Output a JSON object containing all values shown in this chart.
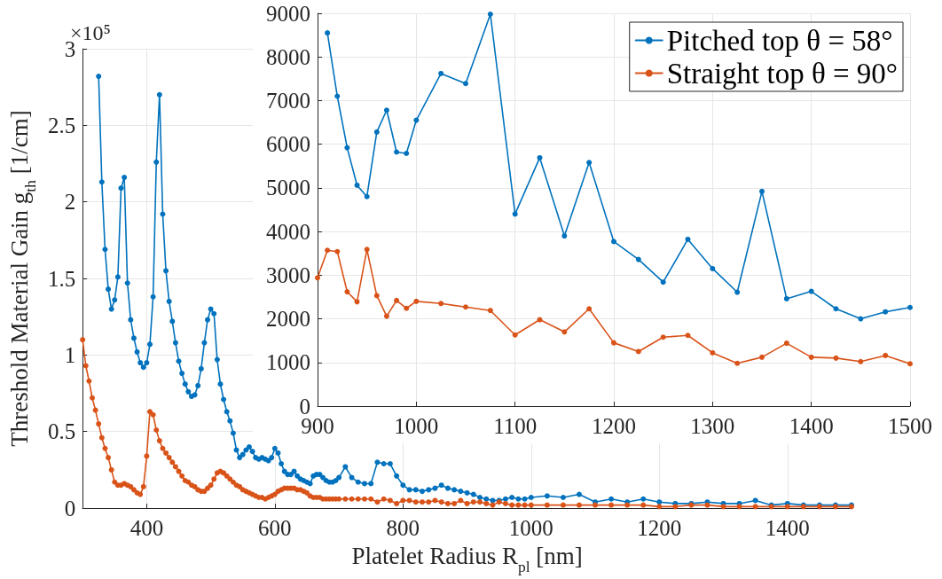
{
  "chart_data": [
    {
      "type": "line",
      "xlabel": "Platelet Radius R$_{pl}$ [nm]",
      "ylabel": "Threshold Material Gain g$_{th}$ [1/cm]",
      "annotations": [
        "×10⁵"
      ],
      "xlim": [
        300,
        1500
      ],
      "xticks": [
        400,
        600,
        800,
        1000,
        1200,
        1400
      ],
      "ylim": [
        0,
        3
      ],
      "yticks": [
        0,
        0.5,
        1,
        1.5,
        2,
        2.5,
        3
      ],
      "grid": true,
      "legend": false,
      "marker": "circle",
      "line_style": "solid",
      "series": [
        {
          "color": "#0072bd",
          "x": [
            325,
            330,
            335,
            340,
            345,
            350,
            355,
            360,
            365,
            370,
            375,
            380,
            385,
            390,
            395,
            400,
            405,
            410,
            415,
            420,
            425,
            430,
            435,
            440,
            445,
            450,
            455,
            460,
            465,
            470,
            475,
            480,
            485,
            490,
            495,
            500,
            505,
            510,
            515,
            520,
            525,
            530,
            535,
            540,
            545,
            550,
            555,
            560,
            565,
            570,
            575,
            580,
            585,
            590,
            595,
            600,
            605,
            610,
            615,
            620,
            625,
            630,
            635,
            640,
            645,
            650,
            655,
            660,
            665,
            670,
            675,
            680,
            685,
            690,
            695,
            700,
            710,
            720,
            730,
            740,
            750,
            760,
            770,
            780,
            790,
            800,
            810,
            820,
            830,
            840,
            850,
            860,
            870,
            880,
            890,
            900,
            910,
            920,
            930,
            940,
            950,
            960,
            970,
            980,
            990,
            1000,
            1025,
            1050,
            1075,
            1100,
            1125,
            1150,
            1175,
            1200,
            1225,
            1250,
            1275,
            1300,
            1325,
            1350,
            1375,
            1400,
            1425,
            1450,
            1475,
            1500
          ],
          "values": [
            2.82,
            2.13,
            1.69,
            1.43,
            1.3,
            1.36,
            1.51,
            2.09,
            2.16,
            1.47,
            1.23,
            1.11,
            1.02,
            0.95,
            0.92,
            0.95,
            1.07,
            1.38,
            2.26,
            2.7,
            1.92,
            1.55,
            1.35,
            1.22,
            1.08,
            0.96,
            0.88,
            0.81,
            0.76,
            0.73,
            0.74,
            0.8,
            0.91,
            1.08,
            1.23,
            1.3,
            1.27,
            0.97,
            0.81,
            0.71,
            0.63,
            0.57,
            0.49,
            0.38,
            0.33,
            0.35,
            0.38,
            0.4,
            0.37,
            0.33,
            0.32,
            0.33,
            0.32,
            0.31,
            0.33,
            0.39,
            0.36,
            0.29,
            0.24,
            0.22,
            0.22,
            0.24,
            0.21,
            0.19,
            0.18,
            0.17,
            0.16,
            0.21,
            0.22,
            0.22,
            0.2,
            0.18,
            0.17,
            0.17,
            0.18,
            0.2,
            0.27,
            0.2,
            0.17,
            0.16,
            0.16,
            0.3,
            0.29,
            0.29,
            0.21,
            0.15,
            0.12,
            0.12,
            0.11,
            0.12,
            0.13,
            0.15,
            0.13,
            0.12,
            0.11,
            0.1,
            0.09,
            0.07,
            0.06,
            0.05,
            0.05,
            0.06,
            0.07,
            0.06,
            0.06,
            0.07,
            0.08,
            0.07,
            0.09,
            0.04,
            0.06,
            0.04,
            0.06,
            0.04,
            0.03,
            0.03,
            0.04,
            0.03,
            0.03,
            0.05,
            0.02,
            0.03,
            0.02,
            0.02,
            0.02,
            0.02
          ]
        },
        {
          "color": "#d95319",
          "x": [
            300,
            305,
            310,
            315,
            320,
            325,
            330,
            335,
            340,
            345,
            350,
            355,
            360,
            365,
            370,
            375,
            380,
            385,
            390,
            395,
            400,
            405,
            410,
            415,
            420,
            425,
            430,
            435,
            440,
            445,
            450,
            455,
            460,
            465,
            470,
            475,
            480,
            485,
            490,
            495,
            500,
            505,
            510,
            515,
            520,
            525,
            530,
            535,
            540,
            545,
            550,
            555,
            560,
            565,
            570,
            575,
            580,
            585,
            590,
            595,
            600,
            605,
            610,
            615,
            620,
            625,
            630,
            635,
            640,
            645,
            650,
            655,
            660,
            665,
            670,
            675,
            680,
            685,
            690,
            695,
            700,
            710,
            720,
            730,
            740,
            750,
            760,
            770,
            780,
            790,
            800,
            810,
            820,
            830,
            840,
            850,
            860,
            870,
            880,
            890,
            900,
            910,
            920,
            930,
            940,
            950,
            960,
            970,
            980,
            990,
            1000,
            1025,
            1050,
            1075,
            1100,
            1125,
            1150,
            1175,
            1200,
            1225,
            1250,
            1275,
            1300,
            1325,
            1350,
            1375,
            1400,
            1425,
            1450,
            1475,
            1500
          ],
          "values": [
            1.1,
            0.93,
            0.83,
            0.72,
            0.64,
            0.55,
            0.46,
            0.39,
            0.33,
            0.25,
            0.17,
            0.15,
            0.15,
            0.16,
            0.15,
            0.14,
            0.12,
            0.1,
            0.09,
            0.14,
            0.34,
            0.63,
            0.61,
            0.51,
            0.44,
            0.39,
            0.36,
            0.33,
            0.3,
            0.27,
            0.24,
            0.21,
            0.18,
            0.17,
            0.15,
            0.14,
            0.12,
            0.11,
            0.11,
            0.13,
            0.15,
            0.19,
            0.23,
            0.24,
            0.23,
            0.21,
            0.19,
            0.17,
            0.15,
            0.14,
            0.12,
            0.11,
            0.1,
            0.09,
            0.08,
            0.07,
            0.07,
            0.06,
            0.07,
            0.08,
            0.09,
            0.11,
            0.12,
            0.13,
            0.13,
            0.13,
            0.13,
            0.12,
            0.12,
            0.11,
            0.1,
            0.08,
            0.07,
            0.07,
            0.07,
            0.06,
            0.06,
            0.06,
            0.06,
            0.06,
            0.06,
            0.06,
            0.06,
            0.06,
            0.06,
            0.06,
            0.04,
            0.06,
            0.05,
            0.03,
            0.05,
            0.05,
            0.04,
            0.04,
            0.04,
            0.05,
            0.04,
            0.03,
            0.03,
            0.05,
            0.03,
            0.04,
            0.04,
            0.03,
            0.02,
            0.04,
            0.03,
            0.02,
            0.02,
            0.02,
            0.02,
            0.02,
            0.02,
            0.02,
            0.02,
            0.02,
            0.02,
            0.02,
            0.01,
            0.01,
            0.02,
            0.02,
            0.01,
            0.01,
            0.01,
            0.01,
            0.01,
            0.01,
            0.01,
            0.01,
            0.01
          ]
        }
      ]
    },
    {
      "type": "line",
      "xlim": [
        900,
        1500
      ],
      "xticks": [
        900,
        1000,
        1100,
        1200,
        1300,
        1400,
        1500
      ],
      "ylim": [
        0,
        9000
      ],
      "yticks": [
        0,
        1000,
        2000,
        3000,
        4000,
        5000,
        6000,
        7000,
        8000,
        9000
      ],
      "grid": true,
      "legend": "top right",
      "marker": "circle",
      "line_style": "solid",
      "series": [
        {
          "name": "Pitched top θ = 58°",
          "color": "#0072bd",
          "x": [
            910,
            920,
            930,
            940,
            950,
            960,
            970,
            980,
            990,
            1000,
            1025,
            1050,
            1075,
            1100,
            1125,
            1150,
            1175,
            1200,
            1225,
            1250,
            1275,
            1300,
            1325,
            1350,
            1375,
            1400,
            1425,
            1450,
            1475,
            1500
          ],
          "values": [
            8550,
            7100,
            5920,
            5060,
            4800,
            6280,
            6780,
            5820,
            5790,
            6550,
            7620,
            7390,
            8980,
            4400,
            5690,
            3900,
            5580,
            3770,
            3360,
            2840,
            3820,
            3150,
            2610,
            4920,
            2460,
            2630,
            2230,
            2000,
            2160,
            2260
          ]
        },
        {
          "name": "Straight top θ = 90°",
          "color": "#d95319",
          "x": [
            900,
            910,
            920,
            930,
            940,
            950,
            960,
            970,
            980,
            990,
            1000,
            1025,
            1050,
            1075,
            1100,
            1125,
            1150,
            1175,
            1200,
            1225,
            1250,
            1275,
            1300,
            1325,
            1350,
            1375,
            1400,
            1425,
            1450,
            1475,
            1500
          ],
          "values": [
            2940,
            3570,
            3540,
            2620,
            2390,
            3590,
            2530,
            2060,
            2420,
            2240,
            2400,
            2350,
            2270,
            2190,
            1630,
            1980,
            1700,
            2230,
            1450,
            1250,
            1580,
            1620,
            1220,
            980,
            1120,
            1440,
            1120,
            1100,
            1020,
            1160,
            970
          ]
        }
      ]
    }
  ]
}
